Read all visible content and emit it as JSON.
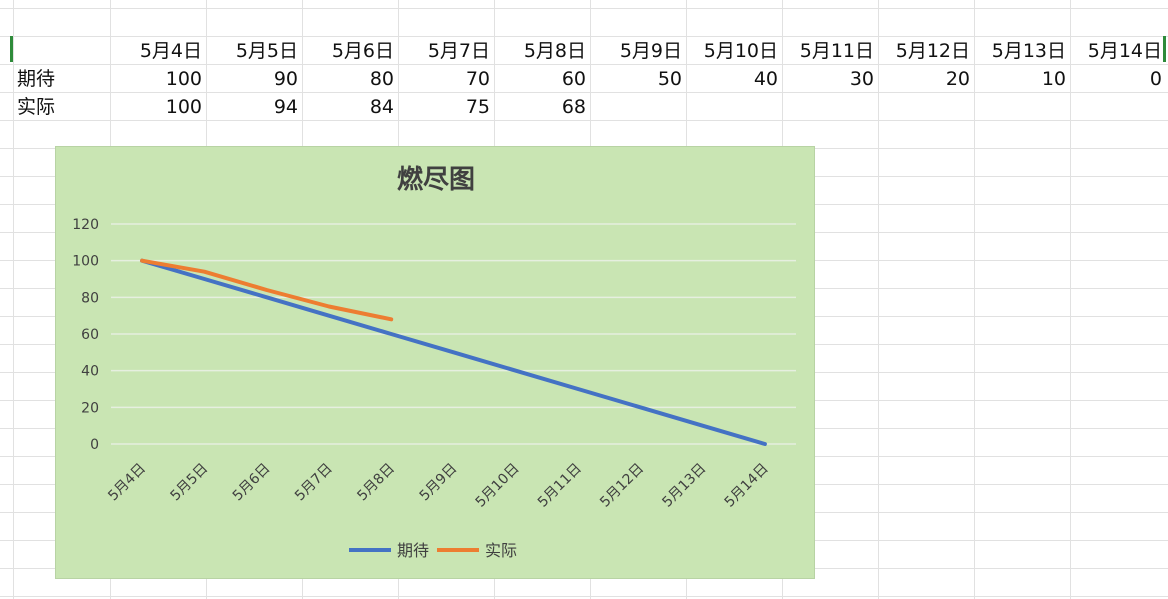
{
  "sheet": {
    "header_row": [
      "",
      "5月4日",
      "5月5日",
      "5月6日",
      "5月7日",
      "5月8日",
      "5月9日",
      "5月10日",
      "5月11日",
      "5月12日",
      "5月13日",
      "5月14日"
    ],
    "rows": [
      {
        "label": "期待",
        "values": [
          "100",
          "90",
          "80",
          "70",
          "60",
          "50",
          "40",
          "30",
          "20",
          "10",
          "0"
        ]
      },
      {
        "label": "实际",
        "values": [
          "100",
          "94",
          "84",
          "75",
          "68",
          "",
          "",
          "",
          "",
          "",
          ""
        ]
      }
    ]
  },
  "chart_data": {
    "type": "line",
    "title": "燃尽图",
    "categories": [
      "5月4日",
      "5月5日",
      "5月6日",
      "5月7日",
      "5月8日",
      "5月9日",
      "5月10日",
      "5月11日",
      "5月12日",
      "5月13日",
      "5月14日"
    ],
    "series": [
      {
        "name": "期待",
        "color": "#4472c4",
        "values": [
          100,
          90,
          80,
          70,
          60,
          50,
          40,
          30,
          20,
          10,
          0
        ]
      },
      {
        "name": "实际",
        "color": "#ed7d31",
        "values": [
          100,
          94,
          84,
          75,
          68,
          null,
          null,
          null,
          null,
          null,
          null
        ]
      }
    ],
    "y_ticks": [
      0,
      20,
      40,
      60,
      80,
      100,
      120
    ],
    "ylim": [
      0,
      120
    ],
    "grid": true,
    "legend_position": "bottom",
    "background_color": "#c9e5b3",
    "gridline_color": "#e6efe0"
  }
}
